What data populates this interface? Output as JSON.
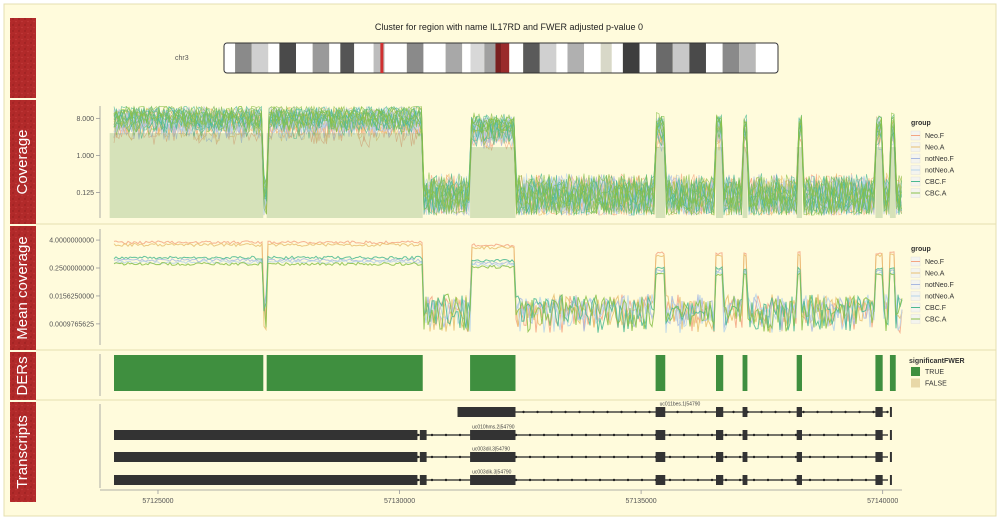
{
  "title": "Cluster for region with name IL17RD and FWER adjusted p-value 0",
  "ideogram": {
    "chrom_label": "chr3",
    "bands": [
      {
        "start": 0.0,
        "end": 0.02,
        "color": "#ffffff"
      },
      {
        "start": 0.02,
        "end": 0.05,
        "color": "#8a8a8a"
      },
      {
        "start": 0.05,
        "end": 0.08,
        "color": "#d0d0d0"
      },
      {
        "start": 0.08,
        "end": 0.1,
        "color": "#ffffff"
      },
      {
        "start": 0.1,
        "end": 0.13,
        "color": "#4a4a4a"
      },
      {
        "start": 0.13,
        "end": 0.16,
        "color": "#ffffff"
      },
      {
        "start": 0.16,
        "end": 0.19,
        "color": "#9a9a9a"
      },
      {
        "start": 0.19,
        "end": 0.21,
        "color": "#ffffff"
      },
      {
        "start": 0.21,
        "end": 0.235,
        "color": "#555555"
      },
      {
        "start": 0.235,
        "end": 0.27,
        "color": "#ffffff"
      },
      {
        "start": 0.27,
        "end": 0.29,
        "color": "#bdbdbd"
      },
      {
        "start": 0.29,
        "end": 0.33,
        "color": "#ffffff"
      },
      {
        "start": 0.33,
        "end": 0.36,
        "color": "#8a8a8a"
      },
      {
        "start": 0.36,
        "end": 0.4,
        "color": "#ffffff"
      },
      {
        "start": 0.4,
        "end": 0.43,
        "color": "#a8a8a8"
      },
      {
        "start": 0.43,
        "end": 0.445,
        "color": "#ffffff"
      },
      {
        "start": 0.445,
        "end": 0.47,
        "color": "#d8d8d8"
      },
      {
        "start": 0.47,
        "end": 0.49,
        "color": "#a0a0a0"
      },
      {
        "start": 0.49,
        "end": 0.5,
        "color": "#7a2020"
      },
      {
        "start": 0.5,
        "end": 0.515,
        "color": "#9a2b2b"
      },
      {
        "start": 0.515,
        "end": 0.54,
        "color": "#ffffff"
      },
      {
        "start": 0.54,
        "end": 0.57,
        "color": "#5a5a5a"
      },
      {
        "start": 0.57,
        "end": 0.6,
        "color": "#d0d0d0"
      },
      {
        "start": 0.6,
        "end": 0.62,
        "color": "#ffffff"
      },
      {
        "start": 0.62,
        "end": 0.65,
        "color": "#b0b0b0"
      },
      {
        "start": 0.65,
        "end": 0.68,
        "color": "#ffffff"
      },
      {
        "start": 0.68,
        "end": 0.7,
        "color": "#d8d8c8"
      },
      {
        "start": 0.7,
        "end": 0.72,
        "color": "#ffffff"
      },
      {
        "start": 0.72,
        "end": 0.75,
        "color": "#3e3e3e"
      },
      {
        "start": 0.75,
        "end": 0.78,
        "color": "#ffffff"
      },
      {
        "start": 0.78,
        "end": 0.81,
        "color": "#6a6a6a"
      },
      {
        "start": 0.81,
        "end": 0.84,
        "color": "#c8c8c8"
      },
      {
        "start": 0.84,
        "end": 0.87,
        "color": "#4a4a4a"
      },
      {
        "start": 0.87,
        "end": 0.9,
        "color": "#ffffff"
      },
      {
        "start": 0.9,
        "end": 0.93,
        "color": "#8a8a8a"
      },
      {
        "start": 0.93,
        "end": 0.96,
        "color": "#b8b8b8"
      },
      {
        "start": 0.96,
        "end": 1.0,
        "color": "#ffffff"
      }
    ],
    "marker": 0.285,
    "marker_color": "#d03030"
  },
  "track_labels": [
    "Coverage",
    "Mean coverage",
    "DERs",
    "Transcripts"
  ],
  "chart_data": {
    "type": "area",
    "x_range": [
      57123800,
      57140400
    ],
    "x_ticks": [
      "57125000",
      "57130000",
      "57135000",
      "57140000"
    ],
    "x_tick_values": [
      57125000,
      57130000,
      57135000,
      57140000
    ],
    "palette": {
      "Neo.F": "#f4a582",
      "Neo.A": "#e8c070",
      "notNeo.F": "#a8b8e0",
      "notNeo.A": "#b6d4ea",
      "CBC.F": "#4ab890",
      "CBC.A": "#88c048"
    },
    "coverage": {
      "y_ticks": [
        "8.000",
        "1.000",
        "0.125"
      ],
      "y_tick_values": [
        8,
        1,
        0.125
      ],
      "y_range": [
        0.03,
        16
      ],
      "legend_title": "group",
      "legend": [
        "Neo.F",
        "Neo.A",
        "notNeo.F",
        "notNeo.A",
        "CBC.F",
        "CBC.A"
      ]
    },
    "mean_coverage": {
      "y_ticks": [
        "4.0000000000",
        "0.2500000000",
        "0.0156250000",
        "0.0009765625"
      ],
      "y_tick_values": [
        4,
        0.25,
        0.015625,
        0.0009765625
      ],
      "y_range": [
        0.00012,
        12
      ],
      "legend_title": "group",
      "legend": [
        "Neo.F",
        "Neo.A",
        "notNeo.F",
        "notNeo.A",
        "CBC.F",
        "CBC.A"
      ]
    },
    "ders": {
      "legend_title": "significantFWER",
      "legend": [
        {
          "label": "TRUE",
          "color": "#3f8f3f"
        },
        {
          "label": "FALSE",
          "color": "#e8d8a8"
        }
      ],
      "regions": [
        [
          57123800,
          57127180
        ],
        [
          57127250,
          57130480
        ],
        [
          57131460,
          57132400
        ],
        [
          57135300,
          57135500
        ],
        [
          57136550,
          57136700
        ],
        [
          57137100,
          57137200
        ],
        [
          57138220,
          57138330
        ],
        [
          57139850,
          57140000
        ],
        [
          57140150,
          57140270
        ]
      ]
    },
    "transcripts": [
      {
        "name": "uc011bes.1|54790",
        "start": 57131200,
        "end": 57140400,
        "exons": [
          [
            57131200,
            57132400
          ],
          [
            57135300,
            57135500
          ],
          [
            57136550,
            57136700
          ],
          [
            57137100,
            57137200
          ],
          [
            57138220,
            57138330
          ],
          [
            57139850,
            57140000
          ],
          [
            57140150,
            57140300
          ]
        ]
      },
      {
        "name": "uc010hms.2|54790",
        "start": 57123800,
        "end": 57140400,
        "exons": [
          [
            57123800,
            57130370
          ],
          [
            57130420,
            57130560
          ],
          [
            57131460,
            57132400
          ],
          [
            57135300,
            57135500
          ],
          [
            57136550,
            57136700
          ],
          [
            57137100,
            57137200
          ],
          [
            57138220,
            57138330
          ],
          [
            57139850,
            57140000
          ],
          [
            57140150,
            57140300
          ]
        ]
      },
      {
        "name": "uc003dil.3|54790",
        "start": 57123800,
        "end": 57140400,
        "exons": [
          [
            57123800,
            57130370
          ],
          [
            57130420,
            57130560
          ],
          [
            57131460,
            57132400
          ],
          [
            57135300,
            57135500
          ],
          [
            57136550,
            57136700
          ],
          [
            57137100,
            57137200
          ],
          [
            57138220,
            57138330
          ],
          [
            57139850,
            57140000
          ],
          [
            57140150,
            57140300
          ]
        ]
      },
      {
        "name": "uc003dik.3|54790",
        "start": 57123800,
        "end": 57140400,
        "exons": [
          [
            57123800,
            57130370
          ],
          [
            57130420,
            57130560
          ],
          [
            57131460,
            57132400
          ],
          [
            57135300,
            57135500
          ],
          [
            57136550,
            57136700
          ],
          [
            57137100,
            57137200
          ],
          [
            57138220,
            57138330
          ],
          [
            57139850,
            57140000
          ],
          [
            57140150,
            57140300
          ]
        ]
      }
    ]
  }
}
